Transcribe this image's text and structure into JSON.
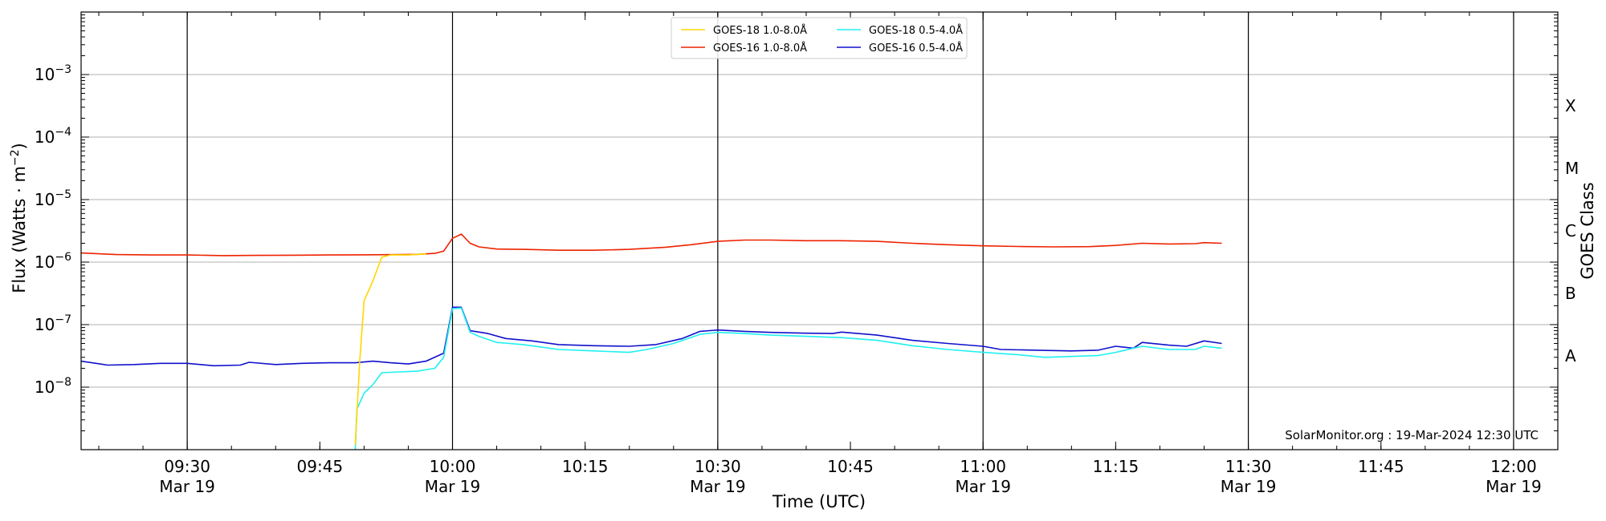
{
  "chart_data": {
    "type": "line",
    "xlabel": "Time (UTC)",
    "ylabel_main": "Flux (Watts · m",
    "ylabel_sup": "−2",
    "ylabel_close": ")",
    "right_axis_label": "GOES Class",
    "credit": "SolarMonitor.org : 19-Mar-2024 12:30 UTC",
    "y_scale": "log",
    "ylim": [
      1e-09,
      0.01
    ],
    "xlim": [
      "09:18",
      "12:05"
    ],
    "y_ticks": [
      {
        "value": 1e-08,
        "base": "10",
        "exp": "−8"
      },
      {
        "value": 1e-07,
        "base": "10",
        "exp": "−7"
      },
      {
        "value": 1e-06,
        "base": "10",
        "exp": "−6"
      },
      {
        "value": 1e-05,
        "base": "10",
        "exp": "−5"
      },
      {
        "value": 0.0001,
        "base": "10",
        "exp": "−4"
      },
      {
        "value": 0.001,
        "base": "10",
        "exp": "−3"
      }
    ],
    "x_ticks": [
      {
        "time": "09:30",
        "label": "09:30",
        "sub": "Mar 19"
      },
      {
        "time": "09:45",
        "label": "09:45",
        "sub": ""
      },
      {
        "time": "10:00",
        "label": "10:00",
        "sub": "Mar 19"
      },
      {
        "time": "10:15",
        "label": "10:15",
        "sub": ""
      },
      {
        "time": "10:30",
        "label": "10:30",
        "sub": "Mar 19"
      },
      {
        "time": "10:45",
        "label": "10:45",
        "sub": ""
      },
      {
        "time": "11:00",
        "label": "11:00",
        "sub": "Mar 19"
      },
      {
        "time": "11:15",
        "label": "11:15",
        "sub": ""
      },
      {
        "time": "11:30",
        "label": "11:30",
        "sub": "Mar 19"
      },
      {
        "time": "11:45",
        "label": "11:45",
        "sub": ""
      },
      {
        "time": "12:00",
        "label": "12:00",
        "sub": "Mar 19"
      }
    ],
    "vertical_lines": [
      "09:30",
      "10:00",
      "10:30",
      "11:00",
      "11:30",
      "12:00"
    ],
    "goes_classes": [
      {
        "label": "A",
        "value": 3.16e-08
      },
      {
        "label": "B",
        "value": 3.16e-07
      },
      {
        "label": "C",
        "value": 3.16e-06
      },
      {
        "label": "M",
        "value": 3.16e-05
      },
      {
        "label": "X",
        "value": 0.000316
      }
    ],
    "grid": true,
    "legend_position": "top-center",
    "series": [
      {
        "name": "GOES-18 1.0-8.0Å",
        "color": "#ffd700",
        "points": [
          [
            "09:49",
            1.2e-09
          ],
          [
            "09:49.5",
            2.5e-08
          ],
          [
            "09:50",
            2.4e-07
          ],
          [
            "09:51",
            5e-07
          ],
          [
            "09:52",
            1.2e-06
          ],
          [
            "09:53",
            1.3e-06
          ],
          [
            "09:55",
            1.3e-06
          ],
          [
            "09:57",
            1.35e-06
          ]
        ]
      },
      {
        "name": "GOES-16 1.0-8.0Å",
        "color": "#ee2200",
        "points": [
          [
            "09:18",
            1.4e-06
          ],
          [
            "09:22",
            1.32e-06
          ],
          [
            "09:26",
            1.3e-06
          ],
          [
            "09:30",
            1.3e-06
          ],
          [
            "09:34",
            1.27e-06
          ],
          [
            "09:38",
            1.28e-06
          ],
          [
            "09:42",
            1.29e-06
          ],
          [
            "09:46",
            1.3e-06
          ],
          [
            "09:50",
            1.31e-06
          ],
          [
            "09:54",
            1.32e-06
          ],
          [
            "09:56",
            1.33e-06
          ],
          [
            "09:58",
            1.38e-06
          ],
          [
            "09:59",
            1.5e-06
          ],
          [
            "10:00",
            2.4e-06
          ],
          [
            "10:01",
            2.8e-06
          ],
          [
            "10:02",
            2e-06
          ],
          [
            "10:03",
            1.75e-06
          ],
          [
            "10:05",
            1.62e-06
          ],
          [
            "10:08",
            1.6e-06
          ],
          [
            "10:12",
            1.55e-06
          ],
          [
            "10:16",
            1.55e-06
          ],
          [
            "10:20",
            1.6e-06
          ],
          [
            "10:24",
            1.72e-06
          ],
          [
            "10:27",
            1.9e-06
          ],
          [
            "10:30",
            2.15e-06
          ],
          [
            "10:33",
            2.25e-06
          ],
          [
            "10:36",
            2.25e-06
          ],
          [
            "10:40",
            2.2e-06
          ],
          [
            "10:44",
            2.2e-06
          ],
          [
            "10:48",
            2.15e-06
          ],
          [
            "10:52",
            2e-06
          ],
          [
            "10:56",
            1.9e-06
          ],
          [
            "11:00",
            1.82e-06
          ],
          [
            "11:04",
            1.78e-06
          ],
          [
            "11:08",
            1.75e-06
          ],
          [
            "11:12",
            1.77e-06
          ],
          [
            "11:15",
            1.85e-06
          ],
          [
            "11:18",
            2e-06
          ],
          [
            "11:21",
            1.95e-06
          ],
          [
            "11:24",
            1.97e-06
          ],
          [
            "11:25",
            2.05e-06
          ],
          [
            "11:27",
            2e-06
          ]
        ]
      },
      {
        "name": "GOES-18 0.5-4.0Å",
        "color": "#20f0f0",
        "points": [
          [
            "09:49",
            1e-09
          ],
          [
            "09:49.2",
            4.5e-09
          ],
          [
            "09:50",
            8e-09
          ],
          [
            "09:51",
            1.1e-08
          ],
          [
            "09:52",
            1.7e-08
          ],
          [
            "09:54",
            1.75e-08
          ],
          [
            "09:56",
            1.8e-08
          ],
          [
            "09:58",
            2e-08
          ],
          [
            "09:59",
            3e-08
          ],
          [
            "10:00",
            1.8e-07
          ],
          [
            "10:01",
            1.85e-07
          ],
          [
            "10:02",
            7.5e-08
          ],
          [
            "10:03",
            6.5e-08
          ],
          [
            "10:05",
            5.2e-08
          ],
          [
            "10:08",
            4.8e-08
          ],
          [
            "10:12",
            4e-08
          ],
          [
            "10:16",
            3.8e-08
          ],
          [
            "10:20",
            3.6e-08
          ],
          [
            "10:22",
            4e-08
          ],
          [
            "10:25",
            5e-08
          ],
          [
            "10:28",
            7e-08
          ],
          [
            "10:30",
            7.5e-08
          ],
          [
            "10:33",
            7.2e-08
          ],
          [
            "10:36",
            6.8e-08
          ],
          [
            "10:40",
            6.5e-08
          ],
          [
            "10:44",
            6.2e-08
          ],
          [
            "10:48",
            5.6e-08
          ],
          [
            "10:52",
            4.6e-08
          ],
          [
            "10:56",
            4e-08
          ],
          [
            "11:00",
            3.6e-08
          ],
          [
            "11:04",
            3.3e-08
          ],
          [
            "11:07",
            3e-08
          ],
          [
            "11:10",
            3.1e-08
          ],
          [
            "11:13",
            3.2e-08
          ],
          [
            "11:15",
            3.6e-08
          ],
          [
            "11:18",
            4.5e-08
          ],
          [
            "11:21",
            4e-08
          ],
          [
            "11:24",
            4e-08
          ],
          [
            "11:25",
            4.5e-08
          ],
          [
            "11:27",
            4.2e-08
          ]
        ]
      },
      {
        "name": "GOES-16 0.5-4.0Å",
        "color": "#1010cc",
        "points": [
          [
            "09:18",
            2.6e-08
          ],
          [
            "09:21",
            2.25e-08
          ],
          [
            "09:24",
            2.3e-08
          ],
          [
            "09:27",
            2.4e-08
          ],
          [
            "09:30",
            2.4e-08
          ],
          [
            "09:33",
            2.2e-08
          ],
          [
            "09:36",
            2.25e-08
          ],
          [
            "09:37",
            2.5e-08
          ],
          [
            "09:40",
            2.3e-08
          ],
          [
            "09:43",
            2.4e-08
          ],
          [
            "09:46",
            2.45e-08
          ],
          [
            "09:49",
            2.45e-08
          ],
          [
            "09:51",
            2.6e-08
          ],
          [
            "09:53",
            2.45e-08
          ],
          [
            "09:55",
            2.35e-08
          ],
          [
            "09:57",
            2.6e-08
          ],
          [
            "09:59",
            3.5e-08
          ],
          [
            "10:00",
            1.9e-07
          ],
          [
            "10:01",
            1.9e-07
          ],
          [
            "10:02",
            8e-08
          ],
          [
            "10:04",
            7.2e-08
          ],
          [
            "10:06",
            6e-08
          ],
          [
            "10:09",
            5.5e-08
          ],
          [
            "10:12",
            4.8e-08
          ],
          [
            "10:16",
            4.6e-08
          ],
          [
            "10:20",
            4.5e-08
          ],
          [
            "10:23",
            4.8e-08
          ],
          [
            "10:26",
            6e-08
          ],
          [
            "10:28",
            7.8e-08
          ],
          [
            "10:30",
            8.2e-08
          ],
          [
            "10:33",
            7.8e-08
          ],
          [
            "10:36",
            7.5e-08
          ],
          [
            "10:40",
            7.3e-08
          ],
          [
            "10:43",
            7.2e-08
          ],
          [
            "10:44",
            7.6e-08
          ],
          [
            "10:48",
            6.8e-08
          ],
          [
            "10:52",
            5.6e-08
          ],
          [
            "10:56",
            5e-08
          ],
          [
            "11:00",
            4.5e-08
          ],
          [
            "11:02",
            4e-08
          ],
          [
            "11:06",
            3.9e-08
          ],
          [
            "11:10",
            3.8e-08
          ],
          [
            "11:13",
            3.9e-08
          ],
          [
            "11:15",
            4.5e-08
          ],
          [
            "11:17",
            4.2e-08
          ],
          [
            "11:18",
            5.2e-08
          ],
          [
            "11:21",
            4.7e-08
          ],
          [
            "11:23",
            4.5e-08
          ],
          [
            "11:25",
            5.5e-08
          ],
          [
            "11:27",
            5e-08
          ]
        ]
      }
    ]
  }
}
